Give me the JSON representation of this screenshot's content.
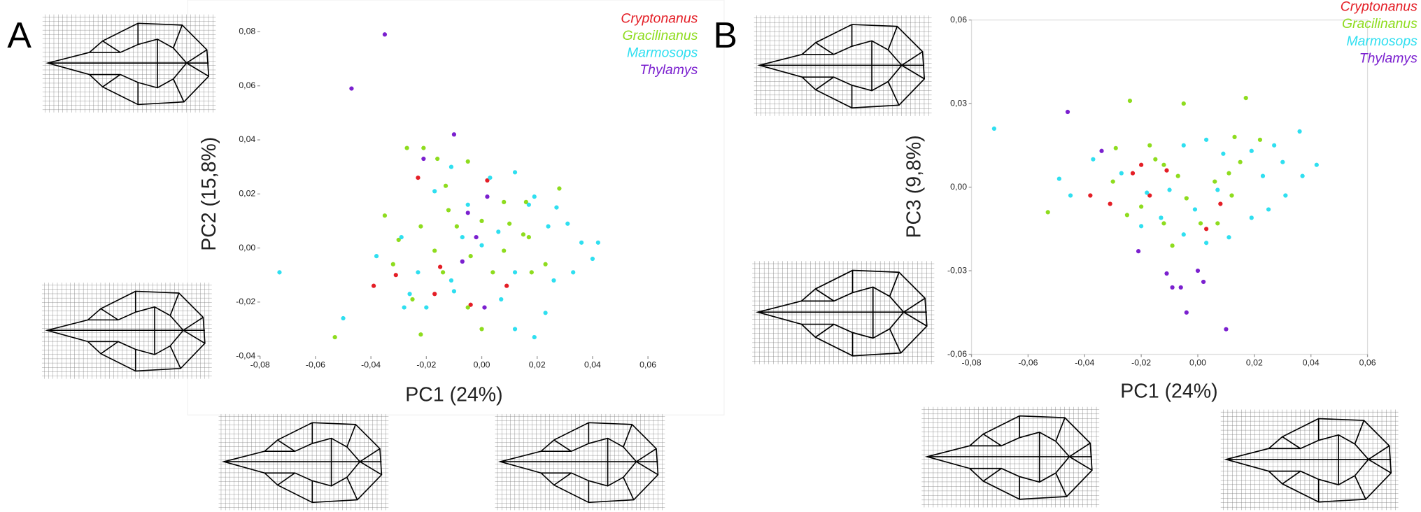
{
  "chart_data": [
    {
      "type": "scatter",
      "panel_label": "A",
      "xlabel": "PC1 (24%)",
      "ylabel": "PC2 (15,8%)",
      "legend": "upper right",
      "frame": false,
      "xlim": [
        -0.08,
        0.06
      ],
      "ylim": [
        -0.04,
        0.08
      ],
      "xticks": [
        {
          "value": -0.08,
          "label": "-0,08"
        },
        {
          "value": -0.06,
          "label": "-0,06"
        },
        {
          "value": -0.04,
          "label": "-0,04"
        },
        {
          "value": -0.02,
          "label": "-0,02"
        },
        {
          "value": 0,
          "label": "0,00"
        },
        {
          "value": 0.02,
          "label": "0,02"
        },
        {
          "value": 0.04,
          "label": "0,04"
        },
        {
          "value": 0.06,
          "label": "0,06"
        }
      ],
      "yticks": [
        {
          "value": -0.04,
          "label": "-0,04"
        },
        {
          "value": -0.02,
          "label": "-0,02"
        },
        {
          "value": 0,
          "label": "0,00"
        },
        {
          "value": 0.02,
          "label": "0,02"
        },
        {
          "value": 0.04,
          "label": "0,04"
        },
        {
          "value": 0.06,
          "label": "0,06"
        },
        {
          "value": 0.08,
          "label": "0,08"
        }
      ],
      "series": [
        {
          "name": "Cryptonanus",
          "color": "#e41e26",
          "x": [
            -0.023,
            0.002,
            -0.039,
            -0.015,
            -0.017,
            -0.004,
            0.009,
            -0.031
          ],
          "y": [
            0.026,
            0.025,
            -0.014,
            -0.007,
            -0.017,
            -0.021,
            -0.014,
            -0.01
          ]
        },
        {
          "name": "Gracilinanus",
          "color": "#8edc1e",
          "x": [
            -0.027,
            -0.021,
            -0.016,
            -0.005,
            -0.013,
            -0.035,
            -0.022,
            -0.03,
            0.008,
            0.016,
            0.028,
            0.015,
            0.01,
            -0.009,
            0.0,
            -0.017,
            -0.004,
            -0.032,
            -0.014,
            0.008,
            0.017,
            0.023,
            -0.025,
            -0.022,
            -0.005,
            0.0,
            -0.053,
            -0.012,
            0.004,
            0.018
          ],
          "y": [
            0.037,
            0.037,
            0.033,
            0.032,
            0.023,
            0.012,
            0.008,
            0.003,
            0.017,
            0.017,
            0.022,
            0.005,
            0.009,
            0.008,
            0.01,
            -0.001,
            -0.003,
            -0.006,
            -0.009,
            -0.001,
            0.004,
            -0.006,
            -0.019,
            -0.032,
            -0.022,
            -0.03,
            -0.033,
            0.014,
            -0.009,
            -0.009
          ]
        },
        {
          "name": "Marmosops",
          "color": "#2fdff0",
          "x": [
            -0.073,
            -0.05,
            -0.038,
            -0.029,
            -0.023,
            -0.017,
            -0.011,
            -0.005,
            0.003,
            0.012,
            0.017,
            0.019,
            0.027,
            0.031,
            0.036,
            0.042,
            0.04,
            0.033,
            0.026,
            0.023,
            0.019,
            0.012,
            0.007,
            -0.01,
            -0.02,
            -0.026,
            -0.007,
            0.0,
            0.006,
            0.012,
            0.024,
            -0.011,
            -0.028
          ],
          "y": [
            -0.009,
            -0.026,
            -0.003,
            0.004,
            -0.009,
            0.021,
            0.03,
            0.016,
            0.026,
            0.028,
            0.016,
            0.019,
            0.015,
            0.009,
            0.002,
            0.002,
            -0.004,
            -0.009,
            -0.012,
            -0.024,
            -0.033,
            -0.03,
            -0.019,
            -0.016,
            -0.022,
            -0.017,
            0.004,
            0.001,
            0.006,
            -0.009,
            0.008,
            -0.012,
            -0.022
          ]
        },
        {
          "name": "Thylamys",
          "color": "#7b20cf",
          "x": [
            -0.035,
            -0.047,
            -0.01,
            -0.021,
            0.002,
            -0.005,
            -0.002,
            -0.007,
            0.001
          ],
          "y": [
            0.079,
            0.059,
            0.042,
            0.033,
            0.019,
            0.013,
            0.004,
            -0.005,
            -0.022
          ]
        }
      ]
    },
    {
      "type": "scatter",
      "panel_label": "B",
      "xlabel": "PC1 (24%)",
      "ylabel": "PC3 (9,8%)",
      "legend": "upper right",
      "frame": true,
      "xlim": [
        -0.08,
        0.06
      ],
      "ylim": [
        -0.06,
        0.06
      ],
      "xticks": [
        {
          "value": -0.08,
          "label": "-0,08"
        },
        {
          "value": -0.06,
          "label": "-0,06"
        },
        {
          "value": -0.04,
          "label": "-0,04"
        },
        {
          "value": -0.02,
          "label": "-0,02"
        },
        {
          "value": 0,
          "label": "0,00"
        },
        {
          "value": 0.02,
          "label": "0,02"
        },
        {
          "value": 0.04,
          "label": "0,04"
        },
        {
          "value": 0.06,
          "label": "0,06"
        }
      ],
      "yticks": [
        {
          "value": -0.06,
          "label": "-0,06"
        },
        {
          "value": -0.03,
          "label": "-0,03"
        },
        {
          "value": 0,
          "label": "0,00"
        },
        {
          "value": 0.03,
          "label": "0,03"
        },
        {
          "value": 0.06,
          "label": "0,06"
        }
      ],
      "series": [
        {
          "name": "Cryptonanus",
          "color": "#e41e26",
          "x": [
            -0.038,
            -0.031,
            -0.023,
            -0.02,
            -0.017,
            -0.011,
            0.003,
            0.008
          ],
          "y": [
            -0.003,
            -0.006,
            0.005,
            0.008,
            -0.003,
            0.006,
            -0.015,
            -0.006
          ]
        },
        {
          "name": "Gracilinanus",
          "color": "#8edc1e",
          "x": [
            -0.053,
            -0.024,
            -0.005,
            0.017,
            0.013,
            0.022,
            -0.029,
            -0.017,
            -0.012,
            -0.03,
            -0.025,
            -0.02,
            -0.012,
            -0.004,
            0.006,
            0.012,
            0.015,
            -0.009,
            0.001,
            0.007,
            -0.007,
            -0.015,
            0.011
          ],
          "y": [
            -0.009,
            0.031,
            0.03,
            0.032,
            0.018,
            0.017,
            0.014,
            0.015,
            0.008,
            0.002,
            -0.01,
            -0.007,
            -0.013,
            -0.004,
            0.002,
            -0.003,
            0.009,
            -0.021,
            -0.013,
            -0.013,
            0.004,
            0.01,
            0.005
          ]
        },
        {
          "name": "Marmosops",
          "color": "#2fdff0",
          "x": [
            -0.072,
            -0.049,
            -0.045,
            -0.037,
            -0.027,
            -0.018,
            -0.01,
            -0.005,
            0.003,
            0.009,
            0.019,
            0.027,
            0.036,
            0.042,
            0.037,
            0.031,
            0.025,
            0.019,
            0.011,
            0.003,
            -0.005,
            -0.013,
            -0.02,
            -0.001,
            0.007,
            0.023,
            0.03
          ],
          "y": [
            0.021,
            0.003,
            -0.003,
            0.01,
            0.005,
            -0.002,
            -0.001,
            0.015,
            0.017,
            0.012,
            0.013,
            0.015,
            0.02,
            0.008,
            0.004,
            -0.003,
            -0.008,
            -0.011,
            -0.018,
            -0.02,
            -0.017,
            -0.011,
            -0.014,
            -0.008,
            -0.001,
            0.004,
            0.009
          ]
        },
        {
          "name": "Thylamys",
          "color": "#7b20cf",
          "x": [
            -0.046,
            -0.034,
            -0.021,
            -0.011,
            -0.009,
            -0.006,
            0.0,
            0.002,
            -0.004,
            0.01
          ],
          "y": [
            0.027,
            0.013,
            -0.023,
            -0.031,
            -0.036,
            -0.036,
            -0.03,
            -0.034,
            -0.045,
            -0.051
          ]
        }
      ]
    }
  ]
}
